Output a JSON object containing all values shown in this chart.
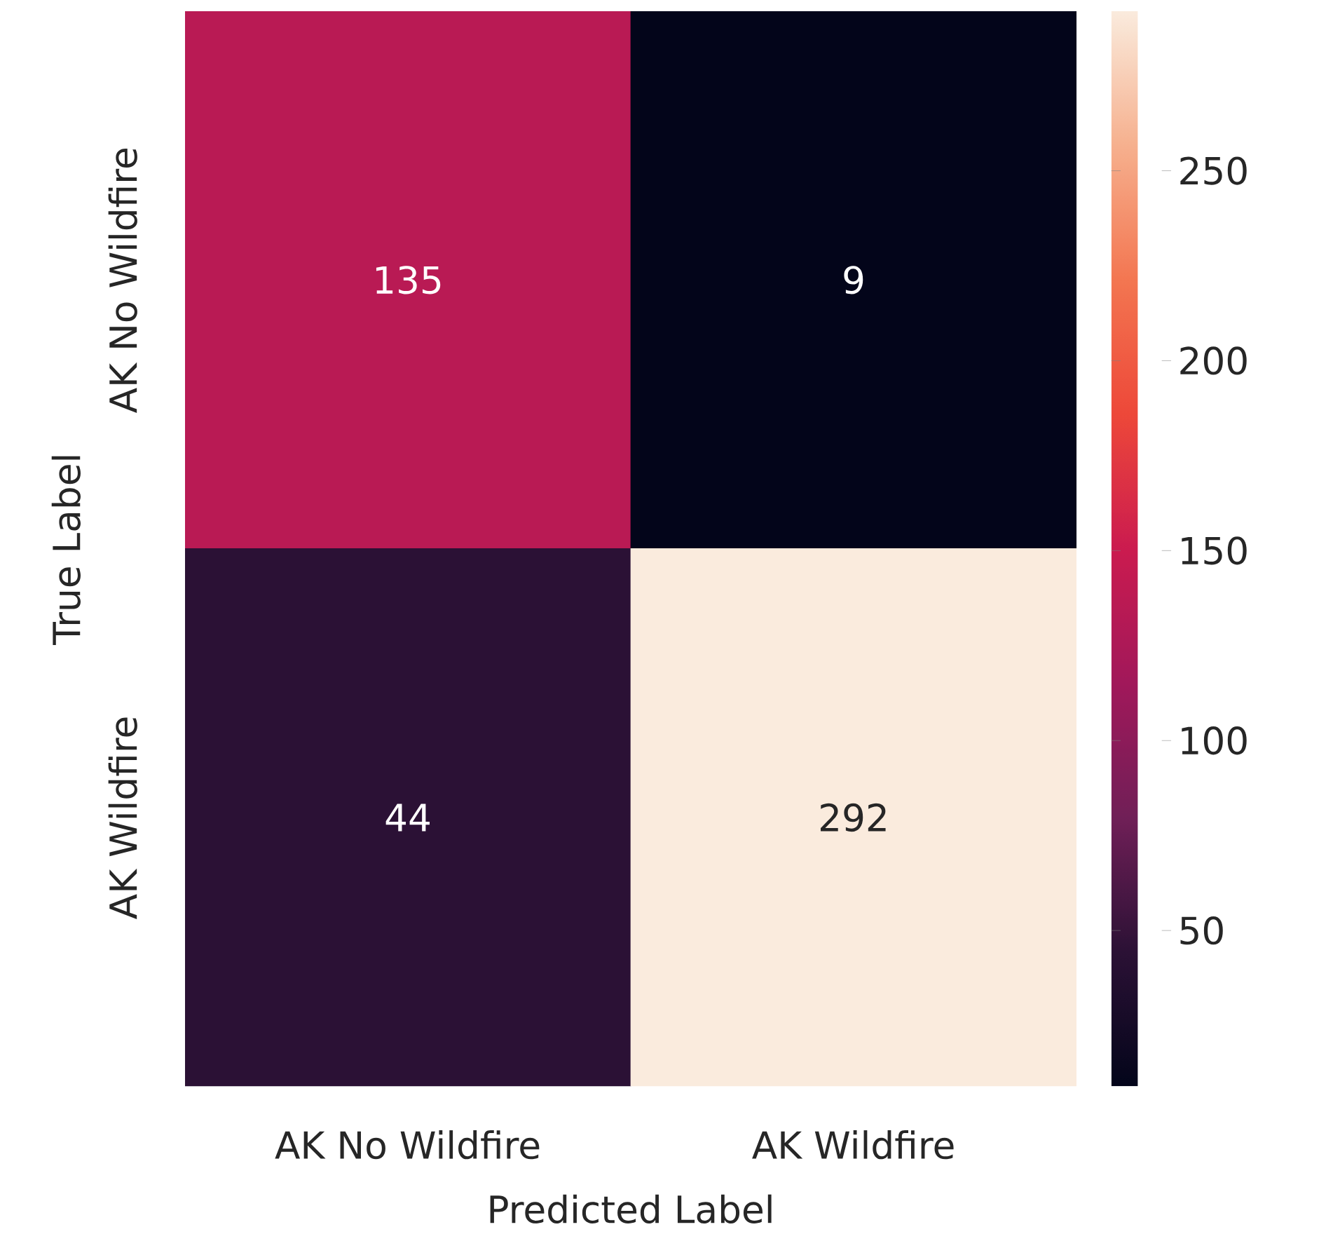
{
  "chart_data": {
    "type": "heatmap",
    "xlabel": "Predicted Label",
    "ylabel": "True Label",
    "categories": [
      "AK No Wildfire",
      "AK Wildfire"
    ],
    "y_categories": [
      "AK No Wildfire",
      "AK Wildfire"
    ],
    "cells": [
      [
        135,
        9
      ],
      [
        44,
        292
      ]
    ],
    "data_labels": true,
    "clim": [
      9,
      292
    ],
    "cticks": [
      50,
      100,
      150,
      200,
      250
    ]
  }
}
